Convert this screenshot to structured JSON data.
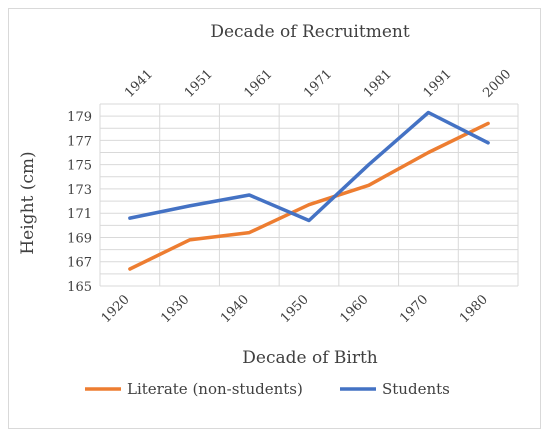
{
  "chart_data": {
    "type": "line",
    "title": "",
    "x2label": "Decade of Recruitment",
    "x2_categories": [
      "1941",
      "1951",
      "1961",
      "1971",
      "1981",
      "1991",
      "2000"
    ],
    "xlabel": "Decade of Birth",
    "categories": [
      "1920",
      "1930",
      "1940",
      "1950",
      "1960",
      "1970",
      "1980"
    ],
    "ylabel": "Height (cm)",
    "ylim": [
      165,
      180
    ],
    "yticks": [
      165,
      167,
      169,
      171,
      173,
      175,
      177,
      179
    ],
    "grid": true,
    "legend_position": "bottom",
    "series": [
      {
        "name": "Literate (non-students)",
        "color": "#ED7D31",
        "values": [
          166.4,
          168.8,
          169.4,
          171.7,
          173.3,
          176.0,
          178.4
        ]
      },
      {
        "name": "Students",
        "color": "#4472C4",
        "values": [
          170.6,
          171.6,
          172.5,
          170.4,
          175.0,
          179.3,
          176.8
        ]
      }
    ]
  }
}
